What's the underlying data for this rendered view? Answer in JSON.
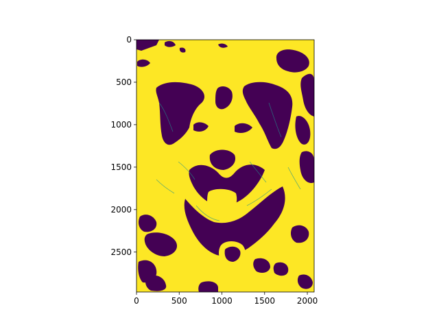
{
  "figure": {
    "xlim": [
      0,
      2080
    ],
    "ylim": [
      2970,
      0
    ],
    "colormap": {
      "low": "#440154",
      "high": "#fde725",
      "edge": "#21918c"
    },
    "x_ticks": [
      {
        "value": 0,
        "label": "0"
      },
      {
        "value": 500,
        "label": "500"
      },
      {
        "value": 1000,
        "label": "1000"
      },
      {
        "value": 1500,
        "label": "1500"
      },
      {
        "value": 2000,
        "label": "2000"
      }
    ],
    "y_ticks": [
      {
        "value": 0,
        "label": "0"
      },
      {
        "value": 500,
        "label": "500"
      },
      {
        "value": 1000,
        "label": "1000"
      },
      {
        "value": 1500,
        "label": "1500"
      },
      {
        "value": 2000,
        "label": "2000"
      },
      {
        "value": 2500,
        "label": "2500"
      }
    ]
  }
}
